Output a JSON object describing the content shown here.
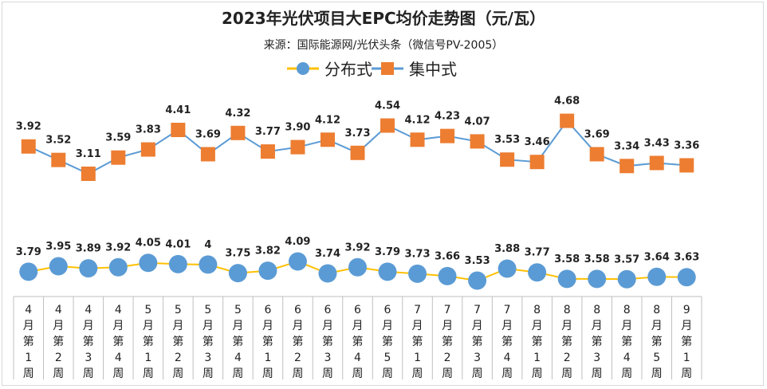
{
  "chart_data": {
    "type": "line",
    "title": "2023年光伏项目大EPC均价走势图（元/瓦）",
    "subtitle": "来源：国际能源网/光伏头条（微信号PV-2005）",
    "categories": [
      "4月第1周",
      "4月第2周",
      "4月第3周",
      "4月第4周",
      "5月第1周",
      "5月第2周",
      "5月第3周",
      "5月第4周",
      "6月第1周",
      "6月第2周",
      "6月第3周",
      "6月第4周",
      "6月第5周",
      "7月第1周",
      "7月第2周",
      "7月第3周",
      "7月第4周",
      "8月第1周",
      "8月第2周",
      "8月第3周",
      "8月第4周",
      "8月第5周",
      "9月第1周"
    ],
    "series": [
      {
        "name": "分布式",
        "color": "#5b9bd5",
        "line_color": "#ffc000",
        "marker": "circle",
        "values": [
          3.79,
          3.95,
          3.89,
          3.92,
          4.05,
          4.01,
          4,
          3.75,
          3.82,
          4.09,
          3.74,
          3.92,
          3.79,
          3.73,
          3.66,
          3.53,
          3.88,
          3.77,
          3.58,
          3.58,
          3.57,
          3.64,
          3.63
        ],
        "labels": [
          "3.79",
          "3.95",
          "3.89",
          "3.92",
          "4.05",
          "4.01",
          "4",
          "3.75",
          "3.82",
          "4.09",
          "3.74",
          "3.92",
          "3.79",
          "3.73",
          "3.66",
          "3.53",
          "3.88",
          "3.77",
          "3.58",
          "3.58",
          "3.57",
          "3.64",
          "3.63"
        ]
      },
      {
        "name": "集中式",
        "color": "#ed7d31",
        "line_color": "#5b9bd5",
        "marker": "square",
        "values": [
          3.92,
          3.52,
          3.11,
          3.59,
          3.83,
          4.41,
          3.69,
          4.32,
          3.77,
          3.9,
          4.12,
          3.73,
          4.54,
          4.12,
          4.23,
          4.07,
          3.53,
          3.46,
          4.68,
          3.69,
          3.34,
          3.43,
          3.36
        ],
        "labels": [
          "3.92",
          "3.52",
          "3.11",
          "3.59",
          "3.83",
          "4.41",
          "3.69",
          "4.32",
          "3.77",
          "3.90",
          "4.12",
          "3.73",
          "4.54",
          "4.12",
          "4.23",
          "4.07",
          "3.53",
          "3.46",
          "4.68",
          "3.69",
          "3.34",
          "3.43",
          "3.36"
        ]
      }
    ],
    "legend_position": "top-center",
    "grid": false
  }
}
